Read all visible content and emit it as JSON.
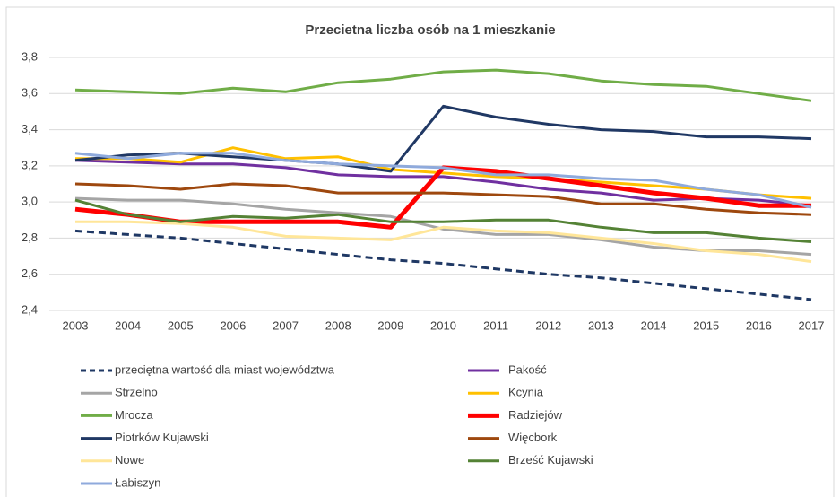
{
  "chart_data": {
    "type": "line",
    "title": "Przecietna liczba osób na 1 mieszkanie",
    "categories": [
      "2003",
      "2004",
      "2005",
      "2006",
      "2007",
      "2008",
      "2009",
      "2010",
      "2011",
      "2012",
      "2013",
      "2014",
      "2015",
      "2016",
      "2017"
    ],
    "ylim": [
      2.4,
      3.8
    ],
    "yticks": [
      {
        "value": 2.4,
        "label": "2,4"
      },
      {
        "value": 2.6,
        "label": "2,6"
      },
      {
        "value": 2.8,
        "label": "2,8"
      },
      {
        "value": 3.0,
        "label": "3,0"
      },
      {
        "value": 3.2,
        "label": "3,2"
      },
      {
        "value": 3.4,
        "label": "3,4"
      },
      {
        "value": 3.6,
        "label": "3,6"
      },
      {
        "value": 3.8,
        "label": "3,8"
      }
    ],
    "grid": true,
    "legend": "bottom",
    "series": [
      {
        "name": "przeciętna wartość dla miast województwa",
        "color": "#1f3864",
        "line_style": "dashed",
        "values": [
          2.84,
          2.82,
          2.8,
          2.77,
          2.74,
          2.71,
          2.68,
          2.66,
          2.63,
          2.6,
          2.58,
          2.55,
          2.52,
          2.49,
          2.46
        ]
      },
      {
        "name": "Pakość",
        "color": "#7030a0",
        "values": [
          3.23,
          3.22,
          3.21,
          3.21,
          3.19,
          3.15,
          3.14,
          3.14,
          3.11,
          3.07,
          3.05,
          3.01,
          3.02,
          3.01,
          2.98
        ]
      },
      {
        "name": "Strzelno",
        "color": "#a5a5a5",
        "values": [
          3.02,
          3.01,
          3.01,
          2.99,
          2.96,
          2.94,
          2.92,
          2.85,
          2.82,
          2.82,
          2.79,
          2.75,
          2.73,
          2.73,
          2.71
        ]
      },
      {
        "name": "Kcynia",
        "color": "#ffc000",
        "values": [
          3.24,
          3.24,
          3.22,
          3.3,
          3.24,
          3.25,
          3.18,
          3.16,
          3.14,
          3.13,
          3.11,
          3.09,
          3.07,
          3.04,
          3.02
        ]
      },
      {
        "name": "Mrocza",
        "color": "#70ad47",
        "values": [
          3.62,
          3.61,
          3.6,
          3.63,
          3.61,
          3.66,
          3.68,
          3.72,
          3.73,
          3.71,
          3.67,
          3.65,
          3.64,
          3.6,
          3.56
        ]
      },
      {
        "name": "Radziejów",
        "color": "#ff0000",
        "line_style": "thick",
        "values": [
          2.96,
          2.93,
          2.89,
          2.89,
          2.89,
          2.89,
          2.86,
          3.19,
          3.17,
          3.13,
          3.09,
          3.05,
          3.02,
          2.98,
          2.98
        ]
      },
      {
        "name": "Piotrków Kujawski",
        "color": "#203864",
        "values": [
          3.23,
          3.26,
          3.27,
          3.25,
          3.23,
          3.21,
          3.17,
          3.53,
          3.47,
          3.43,
          3.4,
          3.39,
          3.36,
          3.36,
          3.35
        ]
      },
      {
        "name": "Więcbork",
        "color": "#9e480e",
        "values": [
          3.1,
          3.09,
          3.07,
          3.1,
          3.09,
          3.05,
          3.05,
          3.05,
          3.04,
          3.03,
          2.99,
          2.99,
          2.96,
          2.94,
          2.93
        ]
      },
      {
        "name": "Nowe",
        "color": "#ffe699",
        "values": [
          2.89,
          2.89,
          2.88,
          2.86,
          2.81,
          2.8,
          2.79,
          2.86,
          2.84,
          2.83,
          2.8,
          2.77,
          2.73,
          2.71,
          2.67
        ]
      },
      {
        "name": "Brześć Kujawski",
        "color": "#548235",
        "values": [
          3.01,
          2.93,
          2.89,
          2.92,
          2.91,
          2.93,
          2.89,
          2.89,
          2.9,
          2.9,
          2.86,
          2.83,
          2.83,
          2.8,
          2.78
        ]
      },
      {
        "name": "Łabiszyn",
        "color": "#8faadc",
        "values": [
          3.27,
          3.24,
          3.27,
          3.27,
          3.23,
          3.21,
          3.2,
          3.19,
          3.15,
          3.15,
          3.13,
          3.12,
          3.07,
          3.04,
          2.97
        ]
      }
    ]
  }
}
